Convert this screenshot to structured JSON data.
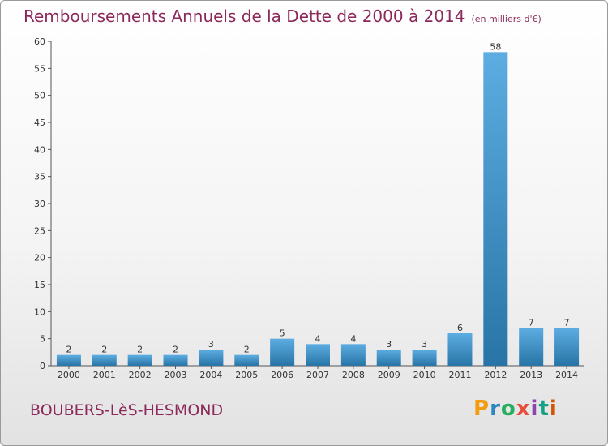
{
  "header": {
    "title": "Remboursements Annuels de la Dette de 2000 à 2014",
    "subtitle": "(en milliers d'€)"
  },
  "footer": {
    "commune": "BOUBERS-LèS-HESMOND",
    "brand": "Proxiti",
    "brand_colors": [
      "#f39c12",
      "#2e86c1",
      "#27ae60",
      "#e74c3c",
      "#8e44ad",
      "#16a085",
      "#d35400"
    ]
  },
  "colors": {
    "bar_light": "#5dade2",
    "bar_dark": "#2874a6",
    "title": "#8b2a5a",
    "axis": "#555555"
  },
  "chart_data": {
    "type": "bar",
    "title": "Remboursements Annuels de la Dette de 2000 à 2014",
    "xlabel": "",
    "ylabel": "",
    "categories": [
      "2000",
      "2001",
      "2002",
      "2003",
      "2004",
      "2005",
      "2006",
      "2007",
      "2008",
      "2009",
      "2010",
      "2011",
      "2012",
      "2013",
      "2014"
    ],
    "values": [
      2,
      2,
      2,
      2,
      3,
      2,
      5,
      4,
      4,
      3,
      3,
      6,
      58,
      7,
      7
    ],
    "ylim": [
      0,
      60
    ],
    "yticks": [
      0,
      5,
      10,
      15,
      20,
      25,
      30,
      35,
      40,
      45,
      50,
      55,
      60
    ],
    "grid": false,
    "data_labels": true
  }
}
